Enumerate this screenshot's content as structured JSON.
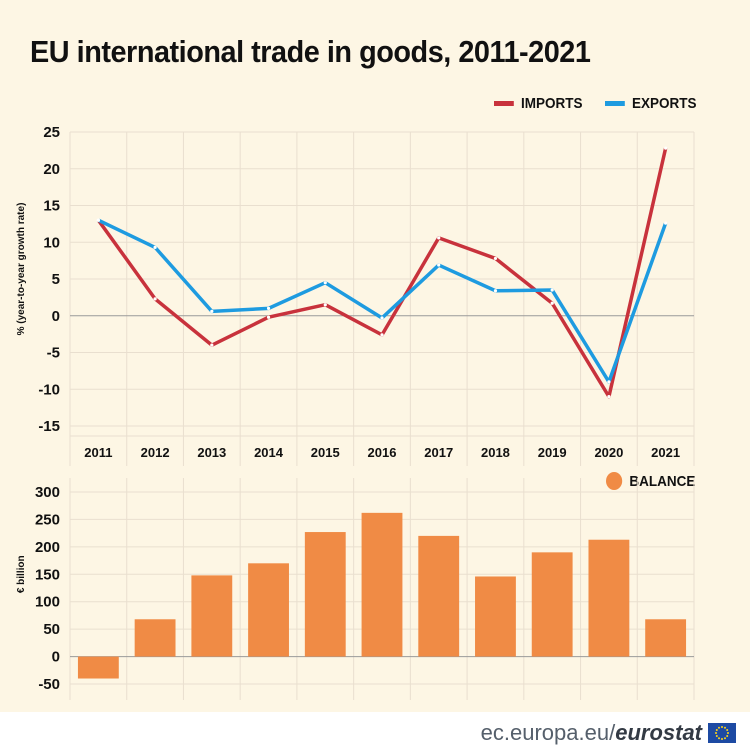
{
  "title": "EU international trade in goods, 2011-2021",
  "footer": {
    "url": "ec.europa.eu/",
    "brand": "eurostat"
  },
  "colors": {
    "background": "#fdf6e4",
    "imports": "#c8323c",
    "exports": "#1e9be0",
    "balance": "#f08b45",
    "grid": "#e9dfcf"
  },
  "chart_data": [
    {
      "type": "line",
      "title": "EU international trade in goods, 2011-2021",
      "xlabel": "",
      "ylabel": "% (year-to-year growth rate)",
      "ylim": [
        -15,
        25
      ],
      "yticks": [
        25,
        20,
        15,
        10,
        5,
        0,
        -5,
        -10,
        -15
      ],
      "categories": [
        "2011",
        "2012",
        "2013",
        "2014",
        "2015",
        "2016",
        "2017",
        "2018",
        "2019",
        "2020",
        "2021"
      ],
      "series": [
        {
          "name": "IMPORTS",
          "color": "#c8323c",
          "values": [
            13,
            2.3,
            -4,
            -0.2,
            1.5,
            -2.6,
            10.6,
            7.8,
            1.7,
            -11,
            22.8
          ]
        },
        {
          "name": "EXPORTS",
          "color": "#1e9be0",
          "values": [
            13,
            9.3,
            0.6,
            1,
            4.5,
            -0.3,
            6.9,
            3.4,
            3.5,
            -9,
            12.6
          ]
        }
      ],
      "legend": "top-right"
    },
    {
      "type": "bar",
      "xlabel": "",
      "ylabel": "€ billion",
      "ylim": [
        -50,
        300
      ],
      "yticks": [
        300,
        250,
        200,
        150,
        100,
        50,
        0,
        -50
      ],
      "categories": [
        "2011",
        "2012",
        "2013",
        "2014",
        "2015",
        "2016",
        "2017",
        "2018",
        "2019",
        "2020",
        "2021"
      ],
      "series": [
        {
          "name": "BALANCE",
          "color": "#f08b45",
          "values": [
            -40,
            68,
            148,
            170,
            227,
            262,
            220,
            146,
            190,
            213,
            68
          ]
        }
      ],
      "legend": "top-right"
    }
  ]
}
